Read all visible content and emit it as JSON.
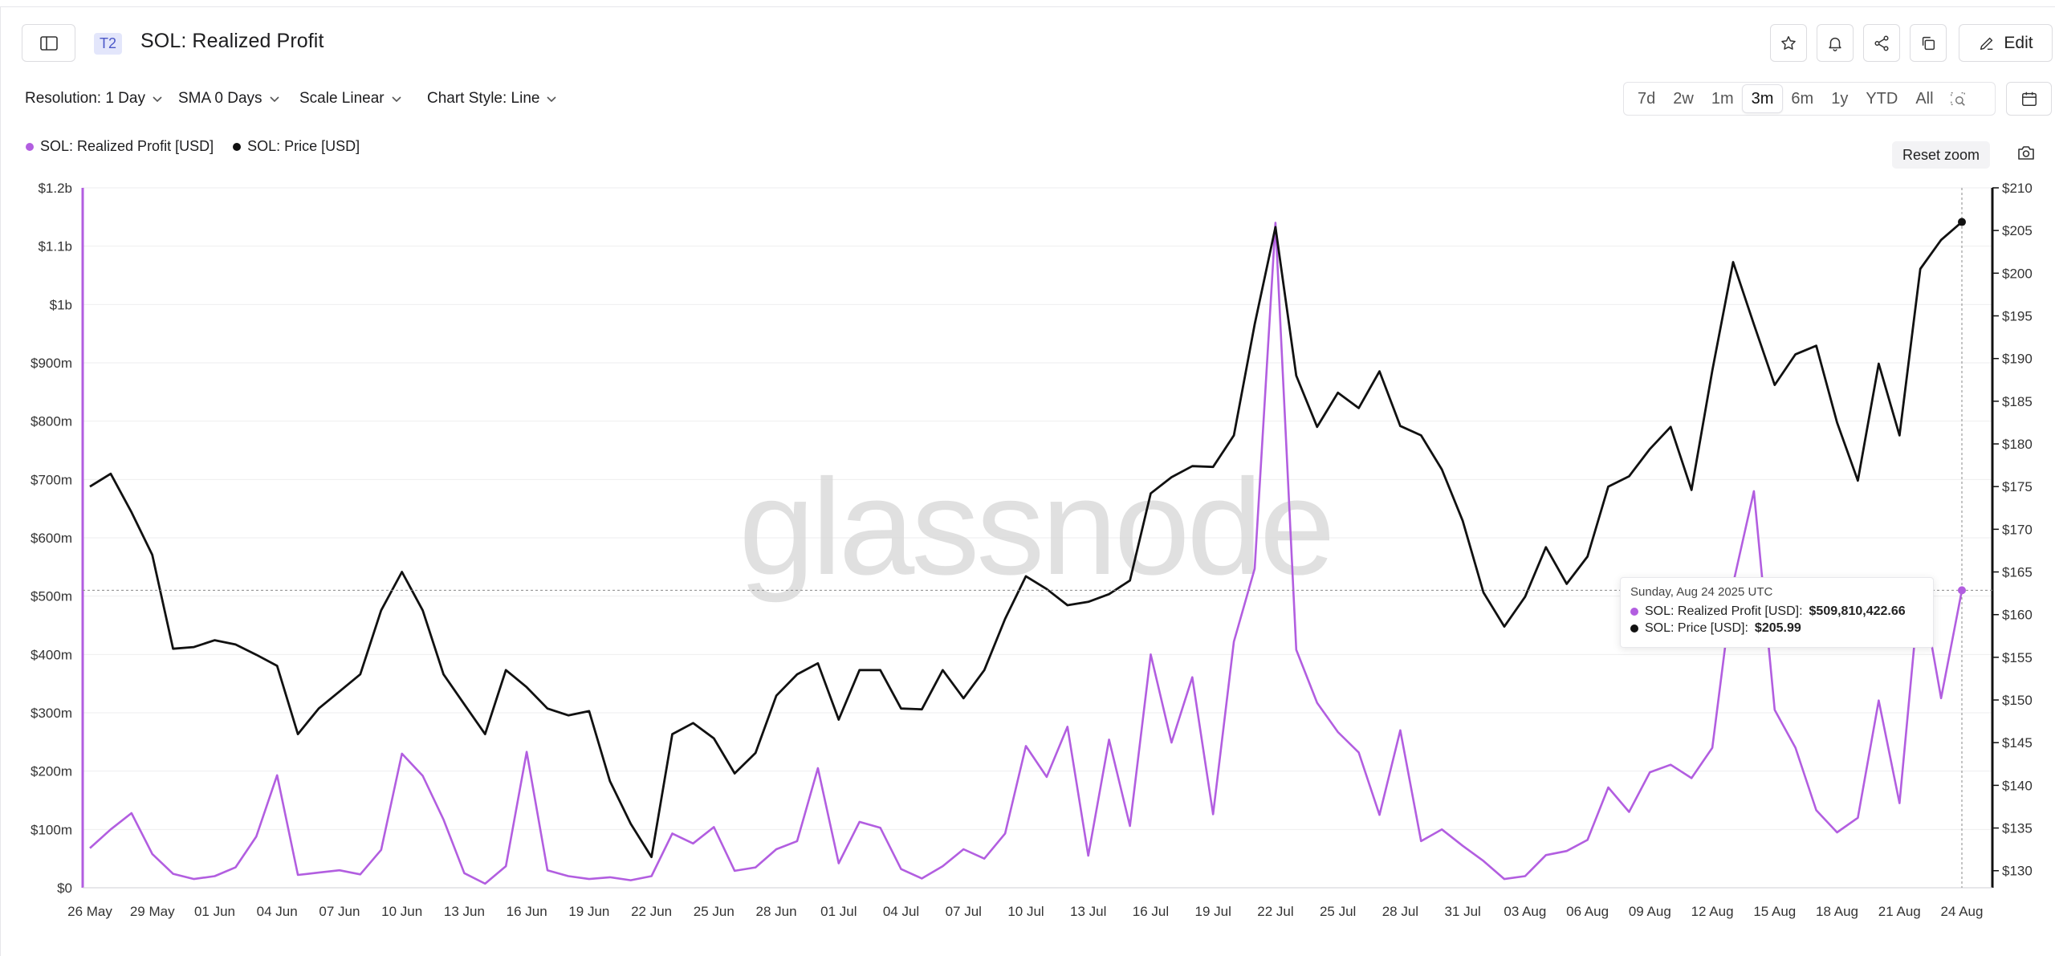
{
  "header": {
    "tier_badge": "T2",
    "title": "SOL: Realized Profit",
    "edit_label": "Edit"
  },
  "controls": {
    "resolution": "Resolution: 1 Day",
    "sma": "SMA 0 Days",
    "scale": "Scale Linear",
    "chart_style": "Chart Style: Line"
  },
  "ranges": [
    {
      "label": "7d",
      "active": false
    },
    {
      "label": "2w",
      "active": false
    },
    {
      "label": "1m",
      "active": false
    },
    {
      "label": "3m",
      "active": true
    },
    {
      "label": "6m",
      "active": false
    },
    {
      "label": "1y",
      "active": false
    },
    {
      "label": "YTD",
      "active": false
    },
    {
      "label": "All",
      "active": false
    }
  ],
  "reset_zoom": "Reset zoom",
  "watermark": "glassnode",
  "icons": [
    "sidebar-toggle-icon",
    "star-icon",
    "bell-icon",
    "share-icon",
    "copy-icon",
    "pencil-icon",
    "zoom-select-icon",
    "calendar-icon",
    "camera-icon",
    "chevron-down-icon"
  ],
  "colors": {
    "profit": "#b25ee0",
    "price": "#111111",
    "tier_bg": "#e3e6fb",
    "tier_text": "#4b57c8"
  },
  "tooltip": {
    "date": "Sunday, Aug 24 2025 UTC",
    "profit_label": "SOL: Realized Profit [USD]:",
    "profit_value": "$509,810,422.66",
    "price_label": "SOL: Price [USD]:",
    "price_value": "$205.99"
  },
  "chart_data": {
    "type": "line",
    "title": "SOL: Realized Profit",
    "x_start": "2025-05-26",
    "x_end": "2025-08-24",
    "x_tick_labels": [
      "26 May",
      "29 May",
      "01 Jun",
      "04 Jun",
      "07 Jun",
      "10 Jun",
      "13 Jun",
      "16 Jun",
      "19 Jun",
      "22 Jun",
      "25 Jun",
      "28 Jun",
      "01 Jul",
      "04 Jul",
      "07 Jul",
      "10 Jul",
      "13 Jul",
      "16 Jul",
      "19 Jul",
      "22 Jul",
      "25 Jul",
      "28 Jul",
      "31 Jul",
      "03 Aug",
      "06 Aug",
      "09 Aug",
      "12 Aug",
      "15 Aug",
      "18 Aug",
      "21 Aug",
      "24 Aug"
    ],
    "y_left": {
      "ylim": [
        0,
        1200000000
      ],
      "tick_values": [
        0,
        100000000,
        200000000,
        300000000,
        400000000,
        500000000,
        600000000,
        700000000,
        800000000,
        900000000,
        1000000000,
        1100000000,
        1200000000
      ],
      "tick_labels": [
        "$0",
        "$100m",
        "$200m",
        "$300m",
        "$400m",
        "$500m",
        "$600m",
        "$700m",
        "$800m",
        "$900m",
        "$1b",
        "$1.1b",
        "$1.2b"
      ]
    },
    "y_right": {
      "ylim": [
        128,
        210
      ],
      "tick_values": [
        130,
        135,
        140,
        145,
        150,
        155,
        160,
        165,
        170,
        175,
        180,
        185,
        190,
        195,
        200,
        205,
        210
      ],
      "tick_labels": [
        "$130",
        "$135",
        "$140",
        "$145",
        "$150",
        "$155",
        "$160",
        "$165",
        "$170",
        "$175",
        "$180",
        "$185",
        "$190",
        "$195",
        "$200",
        "$205",
        "$210"
      ]
    },
    "grid": true,
    "legend_position": "top-left",
    "series": [
      {
        "name": "SOL: Realized Profit [USD]",
        "axis": "left",
        "color": "#b25ee0",
        "values": [
          68000000,
          100000000,
          128000000,
          58000000,
          24000000,
          15000000,
          20000000,
          35000000,
          88000000,
          193000000,
          22000000,
          26000000,
          30000000,
          23000000,
          65000000,
          230000000,
          192000000,
          117000000,
          25000000,
          7000000,
          37000000,
          233000000,
          30000000,
          20000000,
          15000000,
          18000000,
          13000000,
          20000000,
          93000000,
          76000000,
          104000000,
          29000000,
          35000000,
          66000000,
          80000000,
          205000000,
          42000000,
          113000000,
          103000000,
          32000000,
          16000000,
          37000000,
          66000000,
          50000000,
          93000000,
          243000000,
          190000000,
          276000000,
          55000000,
          254000000,
          106000000,
          400000000,
          249000000,
          361000000,
          126000000,
          422000000,
          547000000,
          1140000000,
          408000000,
          317000000,
          267000000,
          232000000,
          125000000,
          270000000,
          80000000,
          100000000,
          72000000,
          46000000,
          15000000,
          20000000,
          56000000,
          63000000,
          82000000,
          172000000,
          130000000,
          198000000,
          211000000,
          188000000,
          240000000,
          521000000,
          680000000,
          305000000,
          240000000,
          133000000,
          95000000,
          120000000,
          321000000,
          145000000,
          527000000,
          325000000,
          510000000
        ]
      },
      {
        "name": "SOL: Price [USD]",
        "axis": "right",
        "color": "#111111",
        "values": [
          175.0,
          176.5,
          172.0,
          167.0,
          156.0,
          156.2,
          157.0,
          156.5,
          155.3,
          154.0,
          146.0,
          149.0,
          151.0,
          153.0,
          160.5,
          165.0,
          160.5,
          153.0,
          149.5,
          146.0,
          153.5,
          151.5,
          149.0,
          148.2,
          148.7,
          140.5,
          135.5,
          131.6,
          146.0,
          147.3,
          145.5,
          141.4,
          143.8,
          150.5,
          153.0,
          154.3,
          147.7,
          153.5,
          153.5,
          149.0,
          148.9,
          153.5,
          150.2,
          153.5,
          159.5,
          164.5,
          163.0,
          161.1,
          161.5,
          162.4,
          164.0,
          174.2,
          176.1,
          177.4,
          177.3,
          181.0,
          194.0,
          205.4,
          188.0,
          182.0,
          186.0,
          184.2,
          188.5,
          182.1,
          181.0,
          177.0,
          171.0,
          162.6,
          158.6,
          162.1,
          167.9,
          163.6,
          166.8,
          175.0,
          176.2,
          179.4,
          182.0,
          174.6,
          188.6,
          201.3,
          194.0,
          186.9,
          190.5,
          191.5,
          182.5,
          175.7,
          189.4,
          181.0,
          200.5,
          203.9,
          206.0
        ]
      }
    ]
  }
}
